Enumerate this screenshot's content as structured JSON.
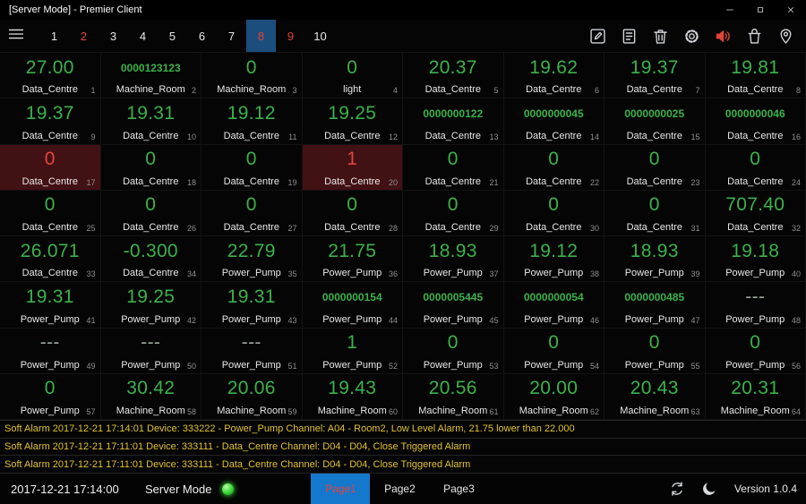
{
  "colors": {
    "green": "#3bb24a",
    "red": "#e0453a",
    "gray": "#9aa49c",
    "alarm_tile_bg": "#421114",
    "alarm_text": "#e0c22e",
    "active_tab_bg": "#1478cd",
    "active_page_bg": "#1c4e7d"
  },
  "window": {
    "title": "[Server Mode] - Premier Client",
    "controls": [
      {
        "name": "minimize-icon"
      },
      {
        "name": "maximize-icon"
      },
      {
        "name": "close-icon"
      }
    ]
  },
  "toolbar": {
    "menu": {
      "name": "menu-icon"
    },
    "pages": [
      {
        "label": "1",
        "alarm": false,
        "active": false
      },
      {
        "label": "2",
        "alarm": true,
        "active": false
      },
      {
        "label": "3",
        "alarm": false,
        "active": false
      },
      {
        "label": "4",
        "alarm": false,
        "active": false
      },
      {
        "label": "5",
        "alarm": false,
        "active": false
      },
      {
        "label": "6",
        "alarm": false,
        "active": false
      },
      {
        "label": "7",
        "alarm": false,
        "active": false
      },
      {
        "label": "8",
        "alarm": true,
        "active": true
      },
      {
        "label": "9",
        "alarm": true,
        "active": false
      },
      {
        "label": "10",
        "alarm": false,
        "active": false
      }
    ],
    "icons": [
      {
        "name": "edit-icon"
      },
      {
        "name": "report-icon"
      },
      {
        "name": "trash-icon"
      },
      {
        "name": "settings-icon"
      },
      {
        "name": "speaker-icon",
        "color": "#e0453a"
      },
      {
        "name": "clear-alarm-icon"
      },
      {
        "name": "location-icon"
      }
    ]
  },
  "tiles": [
    {
      "value": "27.00",
      "label": "Data_Centre",
      "index": "1"
    },
    {
      "value": "0000123123",
      "label": "Machine_Room",
      "index": "2"
    },
    {
      "value": "0",
      "label": "Machine_Room",
      "index": "3"
    },
    {
      "value": "0",
      "label": "light",
      "index": "4"
    },
    {
      "value": "20.37",
      "label": "Data_Centre",
      "index": "5"
    },
    {
      "value": "19.62",
      "label": "Data_Centre",
      "index": "6"
    },
    {
      "value": "19.37",
      "label": "Data_Centre",
      "index": "7"
    },
    {
      "value": "19.81",
      "label": "Data_Centre",
      "index": "8"
    },
    {
      "value": "19.37",
      "label": "Data_Centre",
      "index": "9"
    },
    {
      "value": "19.31",
      "label": "Data_Centre",
      "index": "10"
    },
    {
      "value": "19.12",
      "label": "Data_Centre",
      "index": "11"
    },
    {
      "value": "19.25",
      "label": "Data_Centre",
      "index": "12"
    },
    {
      "value": "0000000122",
      "label": "Data_Centre",
      "index": "13"
    },
    {
      "value": "0000000045",
      "label": "Data_Centre",
      "index": "14"
    },
    {
      "value": "0000000025",
      "label": "Data_Centre",
      "index": "15"
    },
    {
      "value": "0000000046",
      "label": "Data_Centre",
      "index": "16"
    },
    {
      "value": "0",
      "label": "Data_Centre",
      "index": "17",
      "color": "red",
      "alarm": true
    },
    {
      "value": "0",
      "label": "Data_Centre",
      "index": "18"
    },
    {
      "value": "0",
      "label": "Data_Centre",
      "index": "19"
    },
    {
      "value": "1",
      "label": "Data_Centre",
      "index": "20",
      "color": "red",
      "alarm": true
    },
    {
      "value": "0",
      "label": "Data_Centre",
      "index": "21"
    },
    {
      "value": "0",
      "label": "Data_Centre",
      "index": "22"
    },
    {
      "value": "0",
      "label": "Data_Centre",
      "index": "23"
    },
    {
      "value": "0",
      "label": "Data_Centre",
      "index": "24"
    },
    {
      "value": "0",
      "label": "Data_Centre",
      "index": "25"
    },
    {
      "value": "0",
      "label": "Data_Centre",
      "index": "26"
    },
    {
      "value": "0",
      "label": "Data_Centre",
      "index": "27"
    },
    {
      "value": "0",
      "label": "Data_Centre",
      "index": "28"
    },
    {
      "value": "0",
      "label": "Data_Centre",
      "index": "29"
    },
    {
      "value": "0",
      "label": "Data_Centre",
      "index": "30"
    },
    {
      "value": "0",
      "label": "Data_Centre",
      "index": "31"
    },
    {
      "value": "707.40",
      "label": "Data_Centre",
      "index": "32"
    },
    {
      "value": "26.071",
      "label": "Data_Centre",
      "index": "33"
    },
    {
      "value": "-0.300",
      "label": "Data_Centre",
      "index": "34"
    },
    {
      "value": "22.79",
      "label": "Power_Pump",
      "index": "35"
    },
    {
      "value": "21.75",
      "label": "Power_Pump",
      "index": "36"
    },
    {
      "value": "18.93",
      "label": "Power_Pump",
      "index": "37"
    },
    {
      "value": "19.12",
      "label": "Power_Pump",
      "index": "38"
    },
    {
      "value": "18.93",
      "label": "Power_Pump",
      "index": "39"
    },
    {
      "value": "19.18",
      "label": "Power_Pump",
      "index": "40"
    },
    {
      "value": "19.31",
      "label": "Power_Pump",
      "index": "41"
    },
    {
      "value": "19.25",
      "label": "Power_Pump",
      "index": "42"
    },
    {
      "value": "19.31",
      "label": "Power_Pump",
      "index": "43"
    },
    {
      "value": "0000000154",
      "label": "Power_Pump",
      "index": "44"
    },
    {
      "value": "0000005445",
      "label": "Power_Pump",
      "index": "45"
    },
    {
      "value": "0000000054",
      "label": "Power_Pump",
      "index": "46"
    },
    {
      "value": "0000000485",
      "label": "Power_Pump",
      "index": "47"
    },
    {
      "value": "---",
      "label": "Power_Pump",
      "index": "48",
      "color": "gray"
    },
    {
      "value": "---",
      "label": "Power_Pump",
      "index": "49",
      "color": "gray"
    },
    {
      "value": "---",
      "label": "Power_Pump",
      "index": "50",
      "color": "gray"
    },
    {
      "value": "---",
      "label": "Power_Pump",
      "index": "51",
      "color": "gray"
    },
    {
      "value": "1",
      "label": "Power_Pump",
      "index": "52"
    },
    {
      "value": "0",
      "label": "Power_Pump",
      "index": "53"
    },
    {
      "value": "0",
      "label": "Power_Pump",
      "index": "54"
    },
    {
      "value": "0",
      "label": "Power_Pump",
      "index": "55"
    },
    {
      "value": "0",
      "label": "Power_Pump",
      "index": "56"
    },
    {
      "value": "0",
      "label": "Power_Pump",
      "index": "57"
    },
    {
      "value": "30.42",
      "label": "Machine_Room",
      "index": "58"
    },
    {
      "value": "20.06",
      "label": "Machine_Room",
      "index": "59"
    },
    {
      "value": "19.43",
      "label": "Machine_Room",
      "index": "60"
    },
    {
      "value": "20.56",
      "label": "Machine_Room",
      "index": "61"
    },
    {
      "value": "20.00",
      "label": "Machine_Room",
      "index": "62"
    },
    {
      "value": "20.43",
      "label": "Machine_Room",
      "index": "63"
    },
    {
      "value": "20.31",
      "label": "Machine_Room",
      "index": "64"
    }
  ],
  "alarms": [
    {
      "text": "Soft Alarm 2017-12-21 17:14:01 Device: 333222 - Power_Pump Channel: A04 - Room2, Low Level Alarm, 21.75 lower than 22.000"
    },
    {
      "text": "Soft Alarm 2017-12-21 17:11:01 Device: 333111 - Data_Centre Channel: D04 - D04, Close Triggered Alarm"
    },
    {
      "text": "Soft Alarm 2017-12-21 17:11:01 Device: 333111 - Data_Centre Channel: D04 - D04, Close Triggered Alarm"
    }
  ],
  "statusbar": {
    "timestamp": "2017-12-21 17:14:00",
    "mode_label": "Server Mode",
    "indicator": {
      "name": "online-indicator",
      "color": "#35d435"
    },
    "tabs": [
      {
        "label": "Page1",
        "active": true
      },
      {
        "label": "Page2",
        "active": false
      },
      {
        "label": "Page3",
        "active": false
      }
    ],
    "icons": [
      {
        "name": "sync-icon"
      },
      {
        "name": "night-mode-icon"
      }
    ],
    "version": "Version 1.0.4"
  }
}
